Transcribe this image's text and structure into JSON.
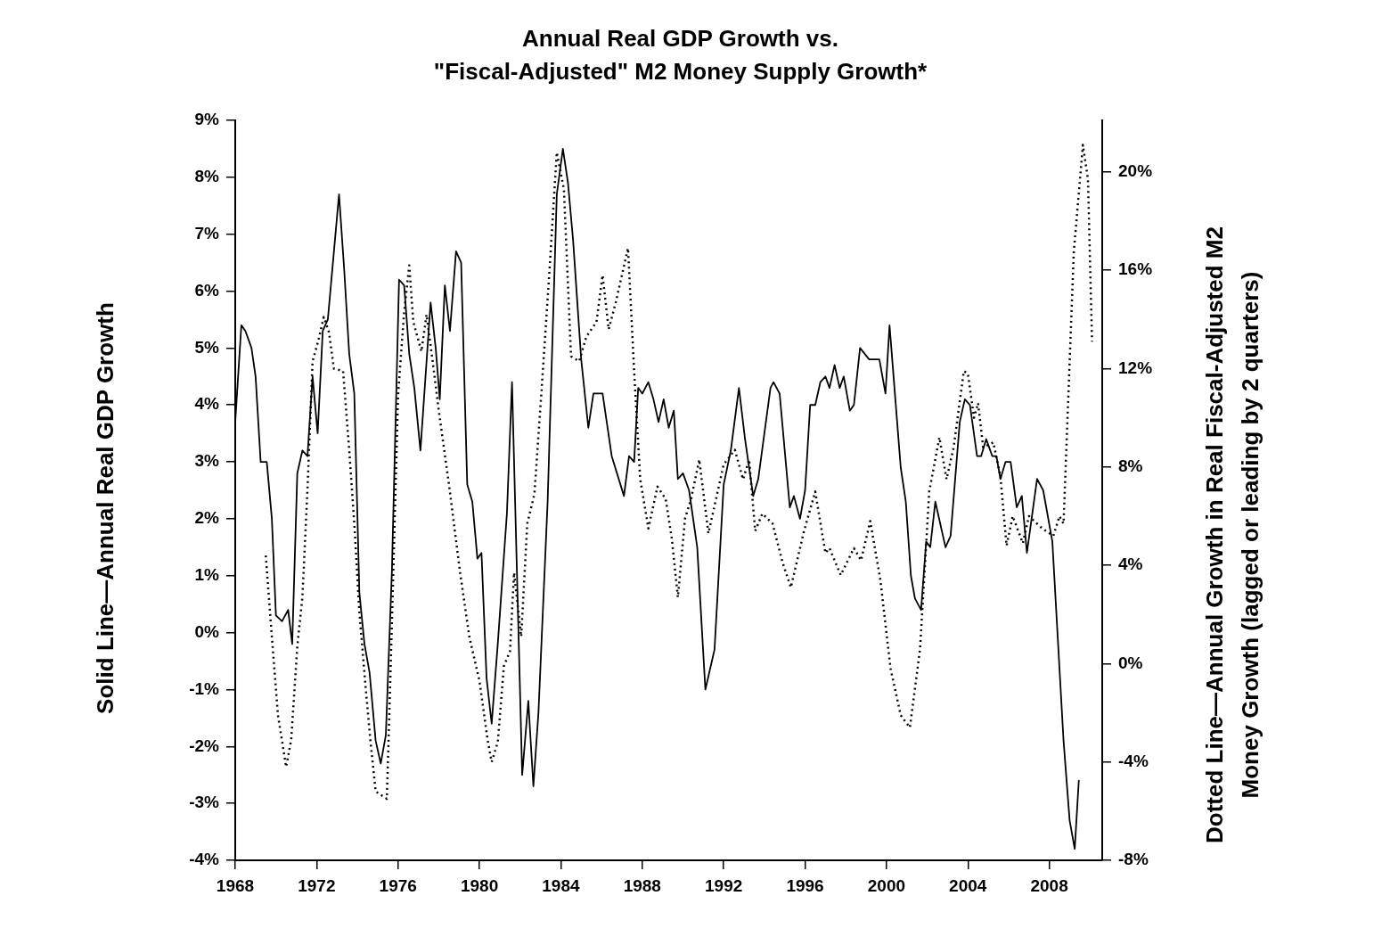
{
  "chart_data": {
    "type": "line",
    "title": "Annual Real GDP Growth vs. \"Fiscal-Adjusted\" M2 Money Supply Growth*",
    "ylabel": "Solid Line—Annual Real GDP Growth",
    "y2label": "Dotted Line—Annual Growth in Real Fiscal-Adjusted M2 Money Growth (lagged or leading by 2 quarters)",
    "xlim": [
      1968,
      2010.6
    ],
    "xticks": [
      1968,
      1972,
      1976,
      1980,
      1984,
      1988,
      1992,
      1996,
      2000,
      2004,
      2008
    ],
    "ylim": [
      -4,
      9
    ],
    "yticks": [
      {
        "value": -4,
        "label": "-4%"
      },
      {
        "value": -3,
        "label": "-3%"
      },
      {
        "value": -2,
        "label": "-2%"
      },
      {
        "value": -1,
        "label": "-1%"
      },
      {
        "value": 0,
        "label": "0%"
      },
      {
        "value": 1,
        "label": "1%"
      },
      {
        "value": 2,
        "label": "2%"
      },
      {
        "value": 3,
        "label": "3%"
      },
      {
        "value": 4,
        "label": "4%"
      },
      {
        "value": 5,
        "label": "5%"
      },
      {
        "value": 6,
        "label": "6%"
      },
      {
        "value": 7,
        "label": "7%"
      },
      {
        "value": 8,
        "label": "8%"
      },
      {
        "value": 9,
        "label": "9%"
      }
    ],
    "y2lim": [
      -8,
      22.1
    ],
    "y2ticks": [
      {
        "value": -8,
        "label": "-8%"
      },
      {
        "value": -4,
        "label": "-4%"
      },
      {
        "value": 0,
        "label": "0%"
      },
      {
        "value": 4,
        "label": "4%"
      },
      {
        "value": 8,
        "label": "8%"
      },
      {
        "value": 12,
        "label": "12%"
      },
      {
        "value": 16,
        "label": "16%"
      },
      {
        "value": 20,
        "label": "20%"
      }
    ],
    "series": [
      {
        "color": "#000000",
        "line_style": "solid",
        "x": [
          1968.0,
          1968.3,
          1968.5,
          1968.8,
          1969.0,
          1969.25,
          1969.55,
          1969.8,
          1970.0,
          1970.3,
          1970.6,
          1970.8,
          1971.05,
          1971.3,
          1971.55,
          1971.8,
          1972.05,
          1972.3,
          1972.55,
          1972.8,
          1973.1,
          1973.35,
          1973.6,
          1973.85,
          1974.1,
          1974.35,
          1974.6,
          1974.9,
          1975.15,
          1975.4,
          1975.7,
          1976.05,
          1976.3,
          1976.55,
          1976.8,
          1977.1,
          1977.6,
          1977.85,
          1978.05,
          1978.3,
          1978.55,
          1978.85,
          1979.1,
          1979.4,
          1979.65,
          1979.9,
          1980.1,
          1980.35,
          1980.6,
          1980.9,
          1981.35,
          1981.6,
          1982.1,
          1982.4,
          1982.65,
          1982.9,
          1983.35,
          1983.8,
          1984.1,
          1984.35,
          1984.6,
          1985.0,
          1985.35,
          1985.6,
          1986.05,
          1986.5,
          1987.1,
          1987.35,
          1987.6,
          1987.8,
          1988.0,
          1988.3,
          1988.55,
          1988.8,
          1989.05,
          1989.3,
          1989.55,
          1989.75,
          1990.0,
          1990.3,
          1990.7,
          1991.1,
          1991.55,
          1992.0,
          1992.35,
          1992.75,
          1993.05,
          1993.45,
          1993.7,
          1994.3,
          1994.45,
          1994.75,
          1995.25,
          1995.45,
          1995.75,
          1996.0,
          1996.25,
          1996.5,
          1996.75,
          1997.0,
          1997.2,
          1997.45,
          1997.7,
          1997.9,
          1998.2,
          1998.4,
          1998.7,
          1999.15,
          1999.65,
          1999.95,
          2000.15,
          2000.7,
          2000.95,
          2001.2,
          2001.4,
          2001.7,
          2001.95,
          2002.15,
          2002.4,
          2002.9,
          2003.15,
          2003.6,
          2003.85,
          2004.1,
          2004.45,
          2004.65,
          2004.9,
          2005.2,
          2005.4,
          2005.6,
          2005.85,
          2006.1,
          2006.4,
          2006.65,
          2006.9,
          2007.4,
          2007.7,
          2008.15,
          2008.7,
          2009.0,
          2009.25,
          2009.45
        ],
        "values": [
          3.7,
          5.4,
          5.3,
          5.0,
          4.5,
          3.0,
          3.0,
          2.0,
          0.3,
          0.2,
          0.4,
          -0.2,
          2.8,
          3.2,
          3.1,
          4.5,
          3.5,
          5.3,
          5.5,
          6.5,
          7.7,
          6.4,
          4.9,
          4.2,
          0.7,
          -0.2,
          -0.7,
          -1.9,
          -2.3,
          -1.8,
          1.1,
          6.2,
          6.1,
          4.9,
          4.3,
          3.2,
          5.8,
          5.0,
          4.1,
          6.1,
          5.3,
          6.7,
          6.5,
          2.6,
          2.3,
          1.3,
          1.4,
          -0.8,
          -1.6,
          -0.2,
          2.1,
          4.4,
          -2.5,
          -1.2,
          -2.7,
          -1.4,
          2.3,
          7.7,
          8.5,
          7.9,
          6.9,
          4.8,
          3.6,
          4.2,
          4.2,
          3.1,
          2.4,
          3.1,
          3.0,
          4.3,
          4.2,
          4.4,
          4.1,
          3.7,
          4.1,
          3.6,
          3.9,
          2.7,
          2.8,
          2.5,
          1.5,
          -1.0,
          -0.3,
          2.6,
          3.2,
          4.3,
          3.4,
          2.4,
          2.7,
          4.3,
          4.4,
          4.2,
          2.2,
          2.4,
          2.0,
          2.5,
          4.0,
          4.0,
          4.4,
          4.5,
          4.3,
          4.7,
          4.3,
          4.5,
          3.9,
          4.0,
          5.0,
          4.8,
          4.8,
          4.2,
          5.4,
          2.9,
          2.3,
          1.0,
          0.6,
          0.4,
          1.6,
          1.5,
          2.3,
          1.5,
          1.7,
          3.7,
          4.1,
          4.0,
          3.1,
          3.1,
          3.4,
          3.1,
          3.1,
          2.7,
          3.0,
          3.0,
          2.2,
          2.4,
          1.4,
          2.7,
          2.5,
          1.6,
          -1.9,
          -3.3,
          -3.8,
          -2.6
        ]
      },
      {
        "color": "#000000",
        "line_style": "dotted",
        "axis": "y2",
        "x": [
          1969.5,
          1969.8,
          1970.1,
          1970.5,
          1970.75,
          1971.05,
          1971.3,
          1971.55,
          1971.8,
          1972.1,
          1972.35,
          1972.6,
          1972.85,
          1973.3,
          1973.6,
          1973.85,
          1974.1,
          1974.4,
          1974.65,
          1974.9,
          1975.45,
          1975.7,
          1976.0,
          1976.3,
          1976.55,
          1976.75,
          1977.15,
          1977.4,
          1977.7,
          1978.0,
          1978.5,
          1979.05,
          1979.5,
          1980.0,
          1980.4,
          1980.6,
          1980.9,
          1981.2,
          1981.5,
          1981.7,
          1982.05,
          1982.35,
          1982.7,
          1983.05,
          1983.45,
          1983.8,
          1984.15,
          1984.5,
          1984.9,
          1985.25,
          1985.75,
          1986.05,
          1986.35,
          1986.7,
          1987.3,
          1987.6,
          1987.9,
          1988.3,
          1988.75,
          1989.15,
          1989.45,
          1989.75,
          1990.1,
          1990.4,
          1990.8,
          1991.25,
          1992.0,
          1992.55,
          1992.95,
          1993.25,
          1993.55,
          1993.9,
          1994.4,
          1994.9,
          1995.3,
          1995.95,
          1996.5,
          1997.0,
          1997.2,
          1997.75,
          1998.4,
          1998.75,
          1999.2,
          1999.7,
          2000.2,
          2000.7,
          2001.15,
          2001.65,
          2002.1,
          2002.6,
          2002.95,
          2003.3,
          2003.8,
          2004.0,
          2004.3,
          2004.5,
          2004.75,
          2005.25,
          2005.6,
          2005.9,
          2006.2,
          2006.7,
          2007.0,
          2007.65,
          2008.2,
          2008.5,
          2008.7,
          2009.2,
          2009.65,
          2009.9,
          2010.1
        ],
        "values": [
          4.4,
          1.1,
          -2.1,
          -4.2,
          -3.1,
          0.7,
          2.7,
          7.1,
          12.3,
          13.2,
          14.1,
          13.5,
          12.0,
          11.9,
          8.7,
          5.7,
          2.1,
          -0.9,
          -3.2,
          -5.2,
          -5.5,
          1.7,
          10.9,
          14.3,
          16.2,
          13.9,
          12.7,
          14.2,
          12.3,
          10.3,
          7.3,
          3.7,
          1.1,
          -0.7,
          -3.1,
          -4.0,
          -3.2,
          -0.1,
          0.5,
          3.7,
          1.1,
          5.7,
          6.9,
          11.1,
          16.1,
          20.8,
          19.3,
          12.5,
          12.3,
          13.3,
          13.9,
          15.8,
          13.6,
          14.7,
          16.9,
          11.9,
          7.5,
          5.5,
          7.2,
          6.7,
          5.1,
          2.7,
          5.9,
          6.7,
          8.3,
          5.3,
          8.1,
          8.7,
          7.5,
          8.3,
          5.4,
          6.1,
          5.7,
          4.1,
          3.1,
          5.4,
          7.0,
          4.5,
          4.7,
          3.6,
          4.7,
          4.2,
          5.8,
          3.4,
          -0.2,
          -2.1,
          -2.6,
          0.6,
          7.0,
          9.2,
          7.5,
          8.8,
          11.9,
          11.8,
          10.0,
          10.6,
          8.8,
          9.0,
          7.6,
          4.8,
          6.0,
          4.9,
          6.0,
          5.5,
          5.2,
          6.0,
          5.7,
          16.7,
          21.1,
          19.7,
          13.1
        ]
      }
    ]
  }
}
